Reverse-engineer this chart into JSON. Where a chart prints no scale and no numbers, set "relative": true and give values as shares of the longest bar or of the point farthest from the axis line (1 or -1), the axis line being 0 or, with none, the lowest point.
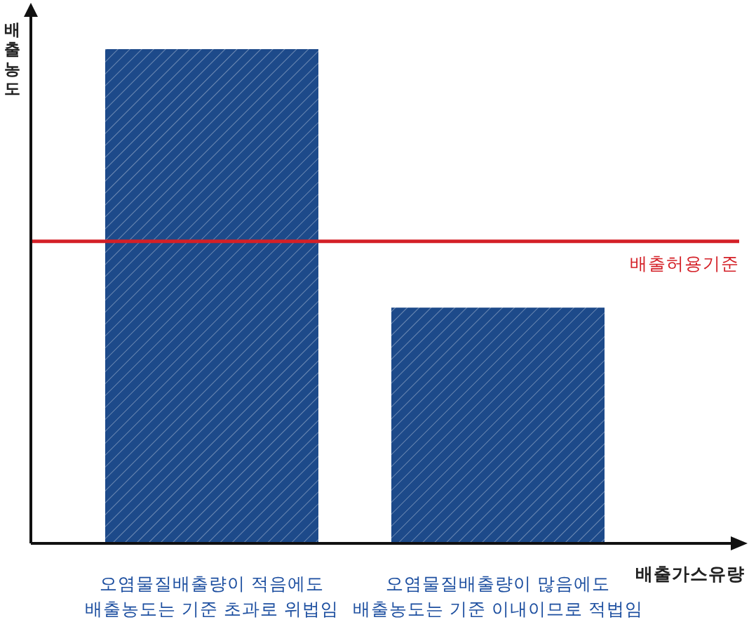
{
  "chart_data": {
    "type": "bar",
    "relative": true,
    "xlabel": "배출가스유량",
    "ylabel": "배출농도",
    "categories": [
      "오염물질배출량이 적음에도\n배출농도는 기준 초과로 위법임",
      "오염물질배출량이 많음에도\n배출농도는 기준 이내이므로 적법임"
    ],
    "values": [
      1,
      0.477
    ],
    "color": "#1d4a8a",
    "ref_lines": [
      {
        "axis": "y",
        "value": 0.611,
        "label": "배출허용기준",
        "color": "#d42027",
        "line_style": "solid"
      }
    ]
  }
}
